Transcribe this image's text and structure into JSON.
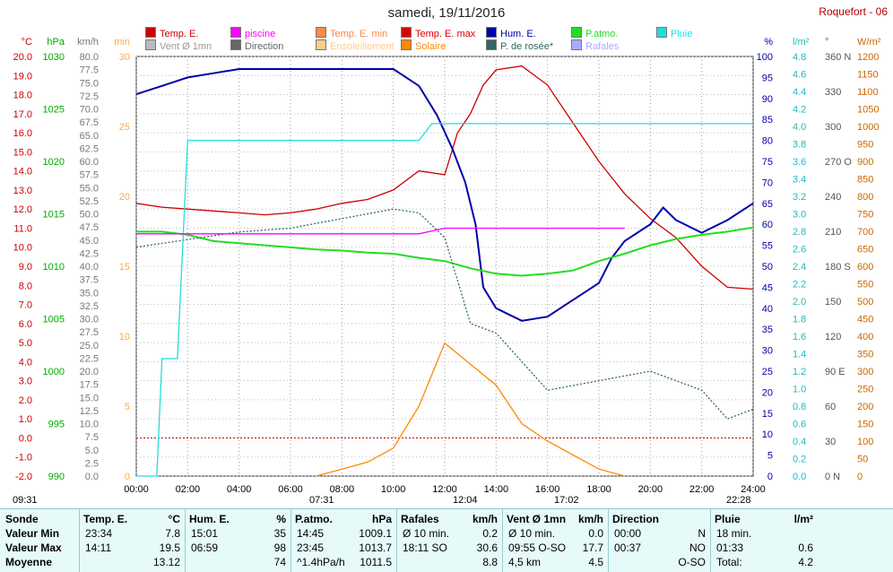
{
  "title": "samedi, 19/11/2016",
  "station": "Roquefort - 06",
  "legend": [
    {
      "label": "Temp. E.",
      "color": "#cc0000"
    },
    {
      "label": "piscine",
      "color": "#ff00ff"
    },
    {
      "label": "Temp. E. min",
      "color": "#ff8844"
    },
    {
      "label": "Temp. E. max",
      "color": "#dd0000"
    },
    {
      "label": "Hum. E.",
      "color": "#0000aa"
    },
    {
      "label": "P.atmo.",
      "color": "#22dd22"
    },
    {
      "label": "Pluie",
      "color": "#22dddd"
    },
    {
      "label": "Vent Ø 1mn",
      "color": "#bbbbbb"
    },
    {
      "label": "Direction",
      "color": "#666666"
    },
    {
      "label": "Ensoleillement",
      "color": "#ffcc88"
    },
    {
      "label": "Solaire",
      "color": "#ff8800"
    },
    {
      "label": "P. de rosée*",
      "color": "#336666"
    },
    {
      "label": "Rafales",
      "color": "#aaaaff"
    }
  ],
  "chart_data": {
    "type": "line",
    "x_ticks": [
      "00:00",
      "02:00",
      "04:00",
      "06:00",
      "08:00",
      "10:00",
      "12:00",
      "14:00",
      "16:00",
      "18:00",
      "20:00",
      "22:00",
      "24:00"
    ],
    "axes": {
      "temp": {
        "unit": "°C",
        "ticks": [
          "20.0",
          "19.0",
          "18.0",
          "17.0",
          "16.0",
          "15.0",
          "14.0",
          "13.0",
          "12.0",
          "11.0",
          "10.0",
          "9.0",
          "8.0",
          "7.0",
          "6.0",
          "5.0",
          "4.0",
          "3.0",
          "2.0",
          "1.0",
          "0.0",
          "-1.0",
          "-2.0"
        ]
      },
      "pressure": {
        "unit": "hPa",
        "ticks": [
          "1030",
          "1025",
          "1020",
          "1015",
          "1010",
          "1005",
          "1000",
          "995",
          "990"
        ]
      },
      "wind": {
        "unit": "km/h",
        "ticks": [
          "80.0",
          "77.5",
          "75.0",
          "72.5",
          "70.0",
          "67.5",
          "65.0",
          "62.5",
          "60.0",
          "57.5",
          "55.0",
          "52.5",
          "50.0",
          "47.5",
          "45.0",
          "42.5",
          "40.0",
          "37.5",
          "35.0",
          "32.5",
          "30.0",
          "27.5",
          "25.0",
          "22.5",
          "20.0",
          "17.5",
          "15.0",
          "12.5",
          "10.0",
          "7.5",
          "5.0",
          "2.5",
          "0.0"
        ]
      },
      "sun_min": {
        "unit": "min",
        "ticks": [
          "30",
          "25",
          "20",
          "15",
          "10",
          "5",
          "0"
        ]
      },
      "hum": {
        "unit": "%",
        "ticks": [
          "100",
          "95",
          "90",
          "85",
          "80",
          "75",
          "70",
          "65",
          "60",
          "55",
          "50",
          "45",
          "40",
          "35",
          "30",
          "25",
          "20",
          "15",
          "10",
          "5",
          "0"
        ]
      },
      "rain": {
        "unit": "l/m²",
        "ticks": [
          "4.8",
          "4.6",
          "4.4",
          "4.2",
          "4.0",
          "3.8",
          "3.6",
          "3.4",
          "3.2",
          "3.0",
          "2.8",
          "2.6",
          "2.4",
          "2.2",
          "2.0",
          "1.8",
          "1.6",
          "1.4",
          "1.2",
          "1.0",
          "0.8",
          "0.6",
          "0.4",
          "0.2",
          "0.0"
        ]
      },
      "dir": {
        "unit": "°",
        "ticks": [
          "360 N",
          "330",
          "300",
          "270 O",
          "240",
          "210",
          "180 S",
          "150",
          "120",
          "90 E",
          "60",
          "30",
          "0 N"
        ]
      },
      "solar": {
        "unit": "W/m²",
        "ticks": [
          "1200",
          "1150",
          "1100",
          "1050",
          "1000",
          "950",
          "900",
          "850",
          "800",
          "750",
          "700",
          "650",
          "600",
          "550",
          "500",
          "450",
          "400",
          "350",
          "300",
          "250",
          "200",
          "150",
          "100",
          "50",
          "0"
        ]
      },
      "sun_labels": [
        "30",
        "25",
        "20",
        "15",
        "10",
        "5",
        "0"
      ]
    },
    "series": [
      {
        "name": "Temp. E.",
        "axis": "temp",
        "points": [
          [
            0,
            12.3
          ],
          [
            1,
            12.1
          ],
          [
            2,
            12.0
          ],
          [
            3,
            11.9
          ],
          [
            4,
            11.8
          ],
          [
            5,
            11.7
          ],
          [
            6,
            11.8
          ],
          [
            7,
            12.0
          ],
          [
            8,
            12.3
          ],
          [
            9,
            12.5
          ],
          [
            10,
            13.0
          ],
          [
            11,
            14.0
          ],
          [
            12,
            13.8
          ],
          [
            12.5,
            16.0
          ],
          [
            13,
            17.0
          ],
          [
            13.5,
            18.5
          ],
          [
            14,
            19.3
          ],
          [
            15,
            19.5
          ],
          [
            16,
            18.5
          ],
          [
            17,
            16.5
          ],
          [
            18,
            14.5
          ],
          [
            19,
            12.8
          ],
          [
            20,
            11.5
          ],
          [
            21,
            10.5
          ],
          [
            22,
            9.0
          ],
          [
            23,
            7.9
          ],
          [
            24,
            7.8
          ]
        ]
      },
      {
        "name": "Hum. E.",
        "axis": "hum",
        "points": [
          [
            0,
            91
          ],
          [
            1,
            93
          ],
          [
            2,
            95
          ],
          [
            3,
            96
          ],
          [
            4,
            97
          ],
          [
            5,
            97
          ],
          [
            6,
            97
          ],
          [
            7,
            97
          ],
          [
            8,
            97
          ],
          [
            9,
            97
          ],
          [
            10,
            97
          ],
          [
            11,
            93
          ],
          [
            11.7,
            86
          ],
          [
            12.3,
            78
          ],
          [
            12.8,
            70
          ],
          [
            13.2,
            60
          ],
          [
            13.5,
            45
          ],
          [
            14,
            40
          ],
          [
            15,
            37
          ],
          [
            16,
            38
          ],
          [
            17,
            42
          ],
          [
            18,
            46
          ],
          [
            18.5,
            52
          ],
          [
            19,
            56
          ],
          [
            20,
            60
          ],
          [
            20.5,
            64
          ],
          [
            21,
            61
          ],
          [
            22,
            58
          ],
          [
            23,
            61
          ],
          [
            24,
            65
          ]
        ]
      },
      {
        "name": "P.atmo.",
        "axis": "pressure",
        "points": [
          [
            0,
            1013.3
          ],
          [
            1,
            1013.3
          ],
          [
            2,
            1013.0
          ],
          [
            3,
            1012.4
          ],
          [
            4,
            1012.2
          ],
          [
            5,
            1012.0
          ],
          [
            6,
            1011.8
          ],
          [
            7,
            1011.6
          ],
          [
            8,
            1011.5
          ],
          [
            9,
            1011.3
          ],
          [
            10,
            1011.2
          ],
          [
            11,
            1010.8
          ],
          [
            12,
            1010.5
          ],
          [
            13,
            1009.8
          ],
          [
            14,
            1009.3
          ],
          [
            15,
            1009.1
          ],
          [
            16,
            1009.3
          ],
          [
            17,
            1009.6
          ],
          [
            18,
            1010.5
          ],
          [
            19,
            1011.2
          ],
          [
            20,
            1012.0
          ],
          [
            21,
            1012.6
          ],
          [
            22,
            1013.0
          ],
          [
            23,
            1013.3
          ],
          [
            24,
            1013.7
          ]
        ]
      },
      {
        "name": "P. de rosée*",
        "axis": "temp",
        "points": [
          [
            0,
            10.0
          ],
          [
            2,
            10.4
          ],
          [
            4,
            10.8
          ],
          [
            6,
            11.0
          ],
          [
            8,
            11.5
          ],
          [
            10,
            12.0
          ],
          [
            11,
            11.8
          ],
          [
            12,
            10.5
          ],
          [
            13,
            6.0
          ],
          [
            14,
            5.5
          ],
          [
            15,
            4.0
          ],
          [
            16,
            2.5
          ],
          [
            18,
            3.0
          ],
          [
            20,
            3.5
          ],
          [
            21,
            3.0
          ],
          [
            22,
            2.5
          ],
          [
            23,
            1.0
          ],
          [
            24,
            1.5
          ]
        ]
      },
      {
        "name": "Solaire",
        "axis": "solar",
        "points": [
          [
            7,
            0
          ],
          [
            8,
            20
          ],
          [
            9,
            40
          ],
          [
            10,
            80
          ],
          [
            11,
            200
          ],
          [
            12,
            380
          ],
          [
            13,
            320
          ],
          [
            14,
            260
          ],
          [
            15,
            150
          ],
          [
            16,
            100
          ],
          [
            17,
            60
          ],
          [
            18,
            20
          ],
          [
            19,
            0
          ]
        ]
      },
      {
        "name": "Pluie",
        "axis": "rain",
        "points": [
          [
            0,
            0.0
          ],
          [
            0.8,
            0.0
          ],
          [
            1.0,
            1.4
          ],
          [
            1.6,
            1.4
          ],
          [
            2.0,
            4.0
          ],
          [
            11.0,
            4.0
          ],
          [
            11.5,
            4.2
          ],
          [
            24,
            4.2
          ]
        ]
      },
      {
        "name": "piscine",
        "axis": "temp",
        "points": [
          [
            0,
            10.7
          ],
          [
            11,
            10.7
          ],
          [
            12,
            11.0
          ],
          [
            19,
            11.0
          ]
        ]
      }
    ],
    "time_markers": [
      "09:31",
      "07:31",
      "12:04",
      "17:02",
      "22:28"
    ],
    "xlim": [
      0,
      24
    ]
  },
  "summary": {
    "row_labels": [
      "Sonde",
      "Valeur Min",
      "Valeur Max",
      "Moyenne"
    ],
    "columns": [
      {
        "header": "Temp. E.",
        "unit": "°C",
        "rows": [
          [
            "23:34",
            "7.8"
          ],
          [
            "14:11",
            "19.5"
          ],
          [
            "",
            "13.12"
          ]
        ]
      },
      {
        "header": "Hum. E.",
        "unit": "%",
        "rows": [
          [
            "15:01",
            "35"
          ],
          [
            "06:59",
            "98"
          ],
          [
            "",
            "74"
          ]
        ]
      },
      {
        "header": "P.atmo.",
        "unit": "hPa",
        "rows": [
          [
            "14:45",
            "1009.1"
          ],
          [
            "23:45",
            "1013.7"
          ],
          [
            "^1.4hPa/h",
            "1011.5"
          ]
        ]
      },
      {
        "header": "Rafales",
        "unit": "km/h",
        "rows": [
          [
            "Ø 10 min.",
            "0.2"
          ],
          [
            "18:11    SO",
            "30.6"
          ],
          [
            "",
            "8.8"
          ]
        ]
      },
      {
        "header": "Vent Ø 1mn",
        "unit": "km/h",
        "rows": [
          [
            "Ø 10 min.",
            "0.0"
          ],
          [
            "09:55  O-SO",
            "17.7"
          ],
          [
            "4,5 km",
            "4.5"
          ]
        ]
      },
      {
        "header": "Direction",
        "unit": "",
        "rows": [
          [
            "00:00",
            "N"
          ],
          [
            "00:37",
            "NO"
          ],
          [
            "",
            "O-SO"
          ]
        ]
      },
      {
        "header": "Pluie",
        "unit": "l/m²",
        "rows": [
          [
            "18 min.",
            ""
          ],
          [
            "01:33",
            "0.6"
          ],
          [
            "Total:",
            "4.2"
          ]
        ]
      }
    ]
  }
}
